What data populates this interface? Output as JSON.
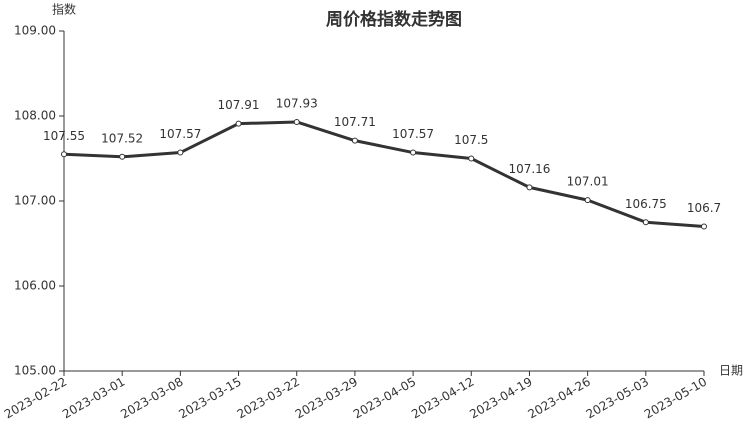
{
  "chart_data": {
    "type": "line",
    "title": "周价格指数走势图",
    "y_label": "指数",
    "x_label": "日期",
    "categories": [
      "2023-02-22",
      "2023-03-01",
      "2023-03-08",
      "2023-03-15",
      "2023-03-22",
      "2023-03-29",
      "2023-04-05",
      "2023-04-12",
      "2023-04-19",
      "2023-04-26",
      "2023-05-03",
      "2023-05-10"
    ],
    "values": [
      107.55,
      107.52,
      107.57,
      107.91,
      107.93,
      107.71,
      107.57,
      107.5,
      107.16,
      107.01,
      106.75,
      106.7
    ],
    "color": "#333333",
    "ylim": [
      105,
      109
    ],
    "yticks": [
      {
        "value": 105,
        "label": "105.00"
      },
      {
        "value": 106,
        "label": "106.00"
      },
      {
        "value": 107,
        "label": "107.00"
      },
      {
        "value": 108,
        "label": "108.00"
      },
      {
        "value": 109,
        "label": "109.00"
      }
    ],
    "grid": false
  }
}
